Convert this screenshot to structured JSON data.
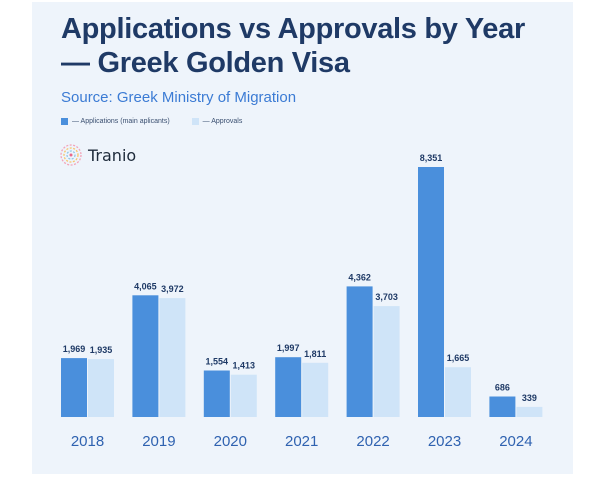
{
  "chart_data": {
    "type": "bar",
    "title": "Applications vs Approvals by Year — Greek Golden Visa",
    "subtitle": "Source: Greek Ministry of Migration",
    "categories": [
      "2018",
      "2019",
      "2020",
      "2021",
      "2022",
      "2023",
      "2024"
    ],
    "series": [
      {
        "name": "— Applications (main aplicants)",
        "color": "#4a8fdc",
        "values": [
          1969,
          4065,
          1554,
          1997,
          4362,
          8351,
          686
        ],
        "labels": [
          "1,969",
          "4,065",
          "1,554",
          "1,997",
          "4,362",
          "8,351",
          "686"
        ]
      },
      {
        "name": "— Approvals",
        "color": "#cfe4f8",
        "values": [
          1935,
          3972,
          1413,
          1811,
          3703,
          1665,
          339
        ],
        "labels": [
          "1,935",
          "3,972",
          "1,413",
          "1,811",
          "3,703",
          "1,665",
          "339"
        ]
      }
    ],
    "ylim": [
      0,
      8351
    ],
    "legend": "top-left",
    "grid": false
  },
  "brand": {
    "logo_text": "Tranio",
    "logo_icon": "tranio-logo-icon"
  },
  "colors": {
    "background": "#eef4fb",
    "title": "#1f3a66",
    "subtitle": "#3b7bd4",
    "label": "#1f3a66",
    "axis_label": "#2f62b0"
  }
}
